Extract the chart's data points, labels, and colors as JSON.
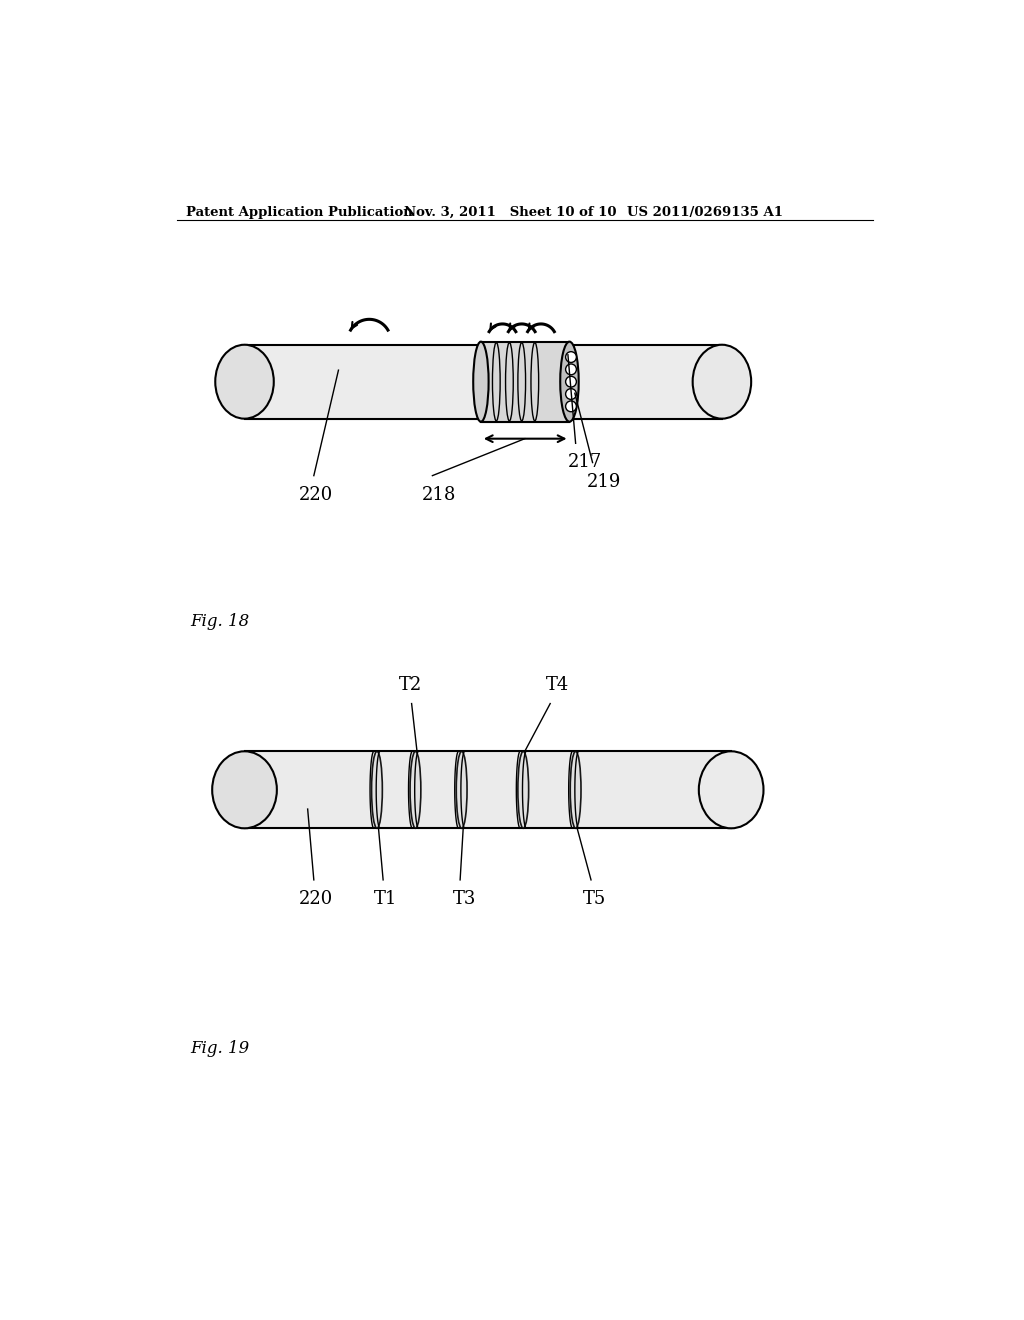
{
  "background_color": "#ffffff",
  "header_left": "Patent Application Publication",
  "header_mid": "Nov. 3, 2011   Sheet 10 of 10",
  "header_right": "US 2011/0269135 A1",
  "fig18_label": "Fig. 18",
  "fig19_label": "Fig. 19"
}
